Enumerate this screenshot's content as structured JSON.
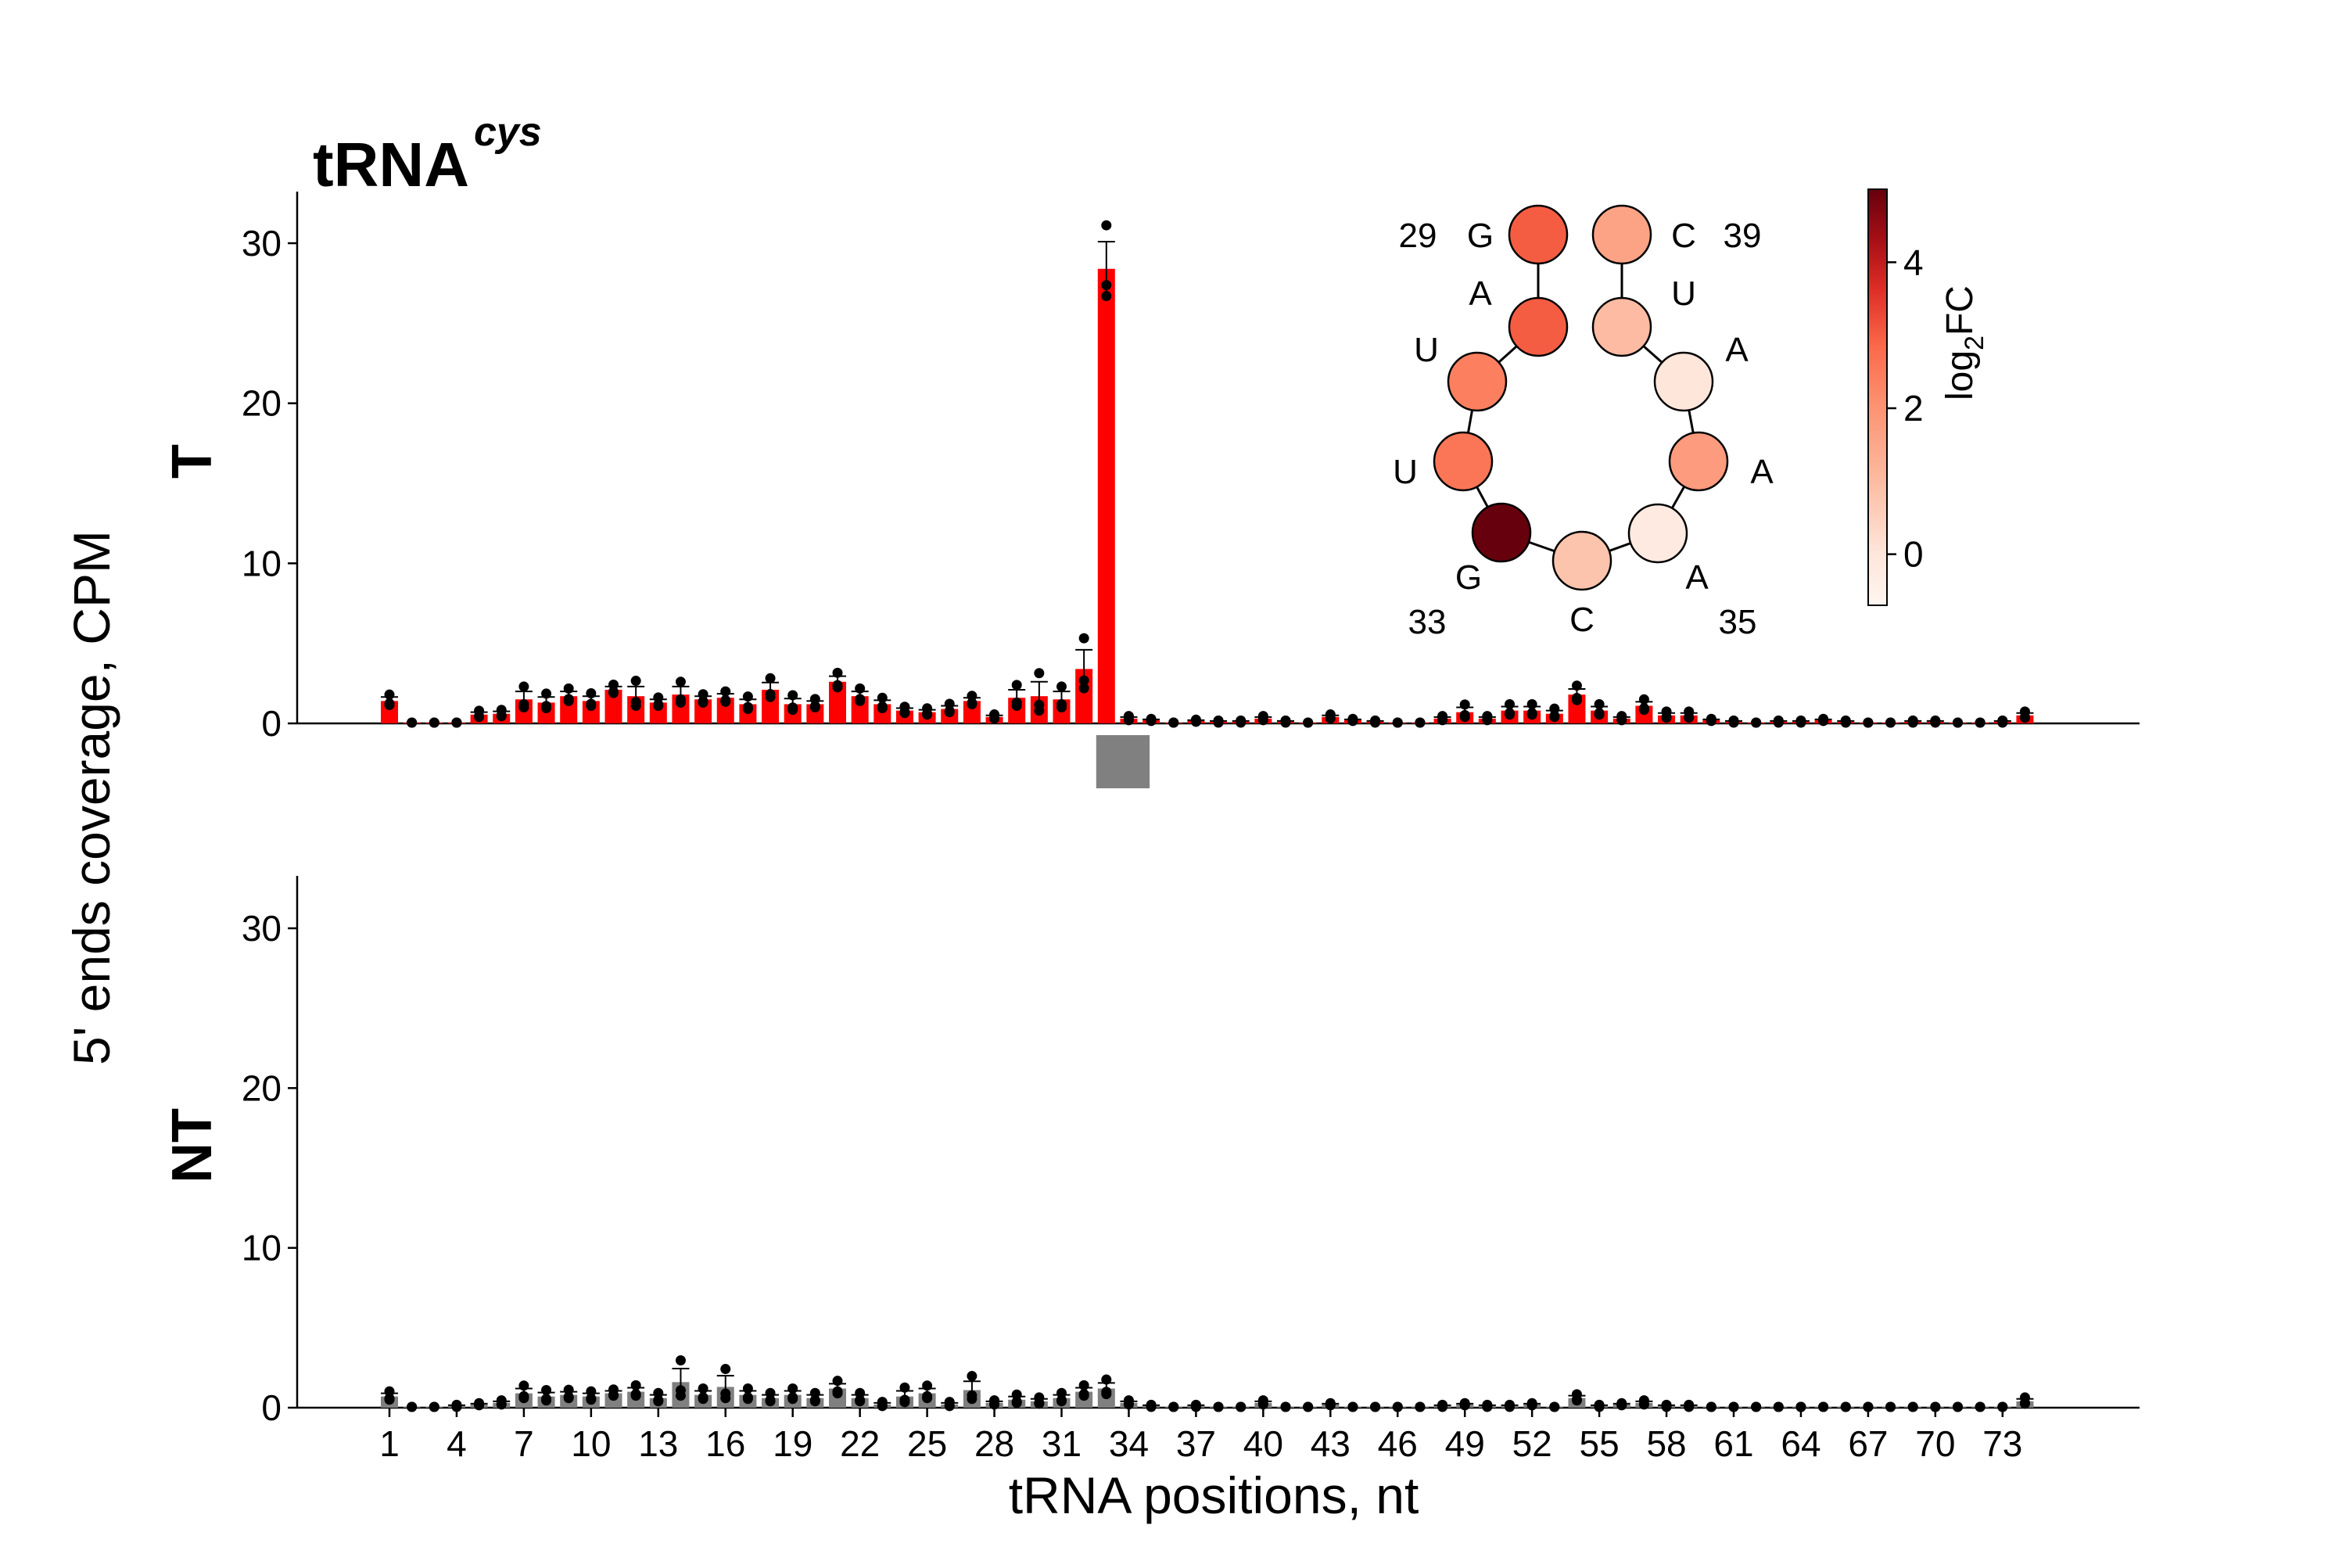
{
  "chart_data": {
    "type": "bar",
    "title": "tRNA",
    "title_superscript": "cys",
    "ylabel": "5' ends coverage, CPM",
    "xlabel": "tRNA positions, nt",
    "x_tick_labels": [
      "1",
      "4",
      "7",
      "10",
      "13",
      "16",
      "19",
      "22",
      "25",
      "28",
      "31",
      "34",
      "37",
      "40",
      "43",
      "46",
      "49",
      "52",
      "55",
      "58",
      "61",
      "64",
      "67",
      "70",
      "73"
    ],
    "positions": [
      1,
      2,
      3,
      4,
      5,
      6,
      7,
      8,
      9,
      10,
      11,
      12,
      13,
      14,
      15,
      16,
      17,
      18,
      19,
      20,
      21,
      22,
      23,
      24,
      25,
      26,
      27,
      28,
      29,
      30,
      31,
      32,
      33,
      34,
      35,
      36,
      37,
      38,
      39,
      40,
      41,
      42,
      43,
      44,
      45,
      46,
      47,
      48,
      49,
      50,
      51,
      52,
      53,
      54,
      55,
      56,
      57,
      58,
      59,
      60,
      61,
      62,
      63,
      64,
      65,
      66,
      67,
      68,
      69,
      70,
      71,
      72,
      73,
      74
    ],
    "ylim": [
      0,
      33
    ],
    "y_ticks": [
      "0",
      "10",
      "20",
      "30"
    ],
    "panels": [
      {
        "label": "T",
        "color": "#ff0000",
        "values": [
          1.4,
          0.05,
          0.05,
          0.05,
          0.55,
          0.6,
          1.5,
          1.3,
          1.7,
          1.4,
          2.1,
          1.7,
          1.3,
          1.8,
          1.5,
          1.6,
          1.2,
          2.1,
          1.2,
          1.2,
          2.6,
          1.7,
          1.2,
          0.8,
          0.7,
          0.9,
          1.4,
          0.4,
          1.6,
          1.7,
          1.5,
          3.4,
          28.4,
          0.3,
          0.2,
          0.05,
          0.15,
          0.1,
          0.1,
          0.3,
          0.1,
          0.05,
          0.4,
          0.2,
          0.1,
          0.05,
          0.05,
          0.3,
          0.7,
          0.3,
          0.8,
          0.8,
          0.6,
          1.8,
          0.8,
          0.3,
          1.1,
          0.5,
          0.5,
          0.2,
          0.1,
          0.05,
          0.1,
          0.1,
          0.2,
          0.1,
          0.05,
          0.05,
          0.1,
          0.1,
          0.05,
          0.05,
          0.1,
          0.5
        ],
        "errors": [
          0.25,
          0,
          0,
          0,
          0.15,
          0.15,
          0.5,
          0.35,
          0.3,
          0.3,
          0.2,
          0.6,
          0.2,
          0.5,
          0.2,
          0.25,
          0.3,
          0.45,
          0.35,
          0.2,
          0.35,
          0.3,
          0.25,
          0.15,
          0.15,
          0.2,
          0.2,
          0.1,
          0.5,
          0.9,
          0.5,
          1.2,
          1.7,
          0.1,
          0.05,
          0,
          0.05,
          0.05,
          0.05,
          0.1,
          0.05,
          0,
          0.1,
          0.05,
          0.05,
          0,
          0,
          0.1,
          0.3,
          0.1,
          0.25,
          0.25,
          0.2,
          0.35,
          0.25,
          0.1,
          0.25,
          0.15,
          0.15,
          0.05,
          0.05,
          0,
          0.05,
          0.05,
          0.05,
          0.05,
          0,
          0,
          0.05,
          0.05,
          0,
          0,
          0.05,
          0.15
        ]
      },
      {
        "label": "NT",
        "color": "#808080",
        "values": [
          0.7,
          0.05,
          0.05,
          0.1,
          0.2,
          0.3,
          0.9,
          0.7,
          0.8,
          0.7,
          0.9,
          1.0,
          0.6,
          1.6,
          0.8,
          1.3,
          0.8,
          0.6,
          0.8,
          0.6,
          1.2,
          0.6,
          0.2,
          0.7,
          0.9,
          0.2,
          1.1,
          0.3,
          0.5,
          0.4,
          0.6,
          1.0,
          1.2,
          0.3,
          0.1,
          0.05,
          0.1,
          0.05,
          0.05,
          0.3,
          0.05,
          0.05,
          0.2,
          0.05,
          0.05,
          0.05,
          0.05,
          0.1,
          0.2,
          0.1,
          0.1,
          0.2,
          0.05,
          0.6,
          0.1,
          0.2,
          0.3,
          0.1,
          0.1,
          0.05,
          0.05,
          0.05,
          0.05,
          0.05,
          0.05,
          0.05,
          0.05,
          0.05,
          0.05,
          0.05,
          0.05,
          0.05,
          0.05,
          0.4
        ],
        "errors": [
          0.2,
          0,
          0,
          0.05,
          0.05,
          0.1,
          0.3,
          0.25,
          0.2,
          0.2,
          0.15,
          0.25,
          0.2,
          0.85,
          0.25,
          0.7,
          0.25,
          0.2,
          0.25,
          0.2,
          0.3,
          0.2,
          0.1,
          0.35,
          0.3,
          0.1,
          0.55,
          0.1,
          0.2,
          0.15,
          0.2,
          0.25,
          0.35,
          0.1,
          0.05,
          0,
          0.05,
          0,
          0,
          0.1,
          0,
          0,
          0.05,
          0,
          0,
          0,
          0,
          0.05,
          0.05,
          0.05,
          0.05,
          0.05,
          0,
          0.15,
          0.05,
          0.05,
          0.1,
          0.05,
          0.05,
          0,
          0,
          0,
          0,
          0,
          0,
          0,
          0,
          0,
          0,
          0,
          0,
          0,
          0,
          0.15
        ]
      }
    ],
    "highlight_positions": [
      33,
      35
    ],
    "highlight_color": "#808080",
    "inset": {
      "nodes": [
        {
          "pos": "29",
          "base": "G",
          "log2fc": 3.0
        },
        {
          "pos": "30",
          "base": "A",
          "log2fc": 3.0
        },
        {
          "pos": "31",
          "base": "U",
          "log2fc": 2.4
        },
        {
          "pos": "32",
          "base": "U",
          "log2fc": 2.6
        },
        {
          "pos": "33",
          "base": "G",
          "log2fc": 5.0
        },
        {
          "pos": "34",
          "base": "C",
          "log2fc": 0.8
        },
        {
          "pos": "35",
          "base": "A",
          "log2fc": -0.2
        },
        {
          "pos": "36",
          "base": "A",
          "log2fc": 1.8
        },
        {
          "pos": "37",
          "base": "A",
          "log2fc": 0.0
        },
        {
          "pos": "38",
          "base": "U",
          "log2fc": 1.0
        },
        {
          "pos": "39",
          "base": "C",
          "log2fc": 1.6
        }
      ],
      "number_labels": [
        "29",
        "39",
        "33",
        "35"
      ],
      "colorbar_label": "log",
      "colorbar_label_sub": "2",
      "colorbar_label_suffix": "FC",
      "colorbar_ticks": [
        "0",
        "2",
        "4"
      ],
      "colorbar_range": [
        -0.7,
        5.0
      ]
    }
  }
}
